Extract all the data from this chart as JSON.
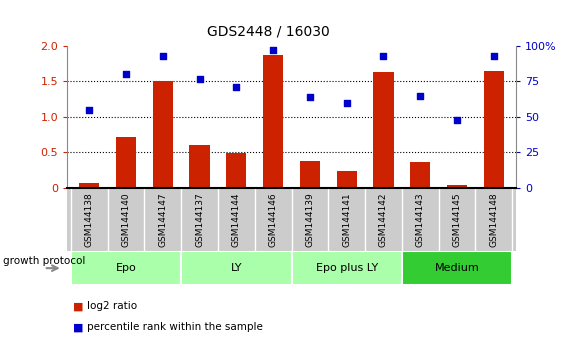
{
  "title": "GDS2448 / 16030",
  "categories": [
    "GSM144138",
    "GSM144140",
    "GSM144147",
    "GSM144137",
    "GSM144144",
    "GSM144146",
    "GSM144139",
    "GSM144141",
    "GSM144142",
    "GSM144143",
    "GSM144145",
    "GSM144148"
  ],
  "log2_ratio": [
    0.06,
    0.72,
    1.5,
    0.6,
    0.49,
    1.87,
    0.37,
    0.24,
    1.63,
    0.36,
    0.04,
    1.65
  ],
  "percentile_rank": [
    55,
    80,
    93,
    77,
    71,
    97,
    64,
    60,
    93,
    65,
    48,
    93
  ],
  "bar_color": "#cc2200",
  "dot_color": "#0000cc",
  "ylim_left": [
    0,
    2
  ],
  "ylim_right": [
    0,
    100
  ],
  "yticks_left": [
    0,
    0.5,
    1.0,
    1.5,
    2.0
  ],
  "yticks_right": [
    0,
    25,
    50,
    75,
    100
  ],
  "ytick_labels_right": [
    "0",
    "25",
    "50",
    "75",
    "100%"
  ],
  "dotted_lines": [
    0.5,
    1.0,
    1.5
  ],
  "groups": [
    {
      "label": "Epo",
      "start": 0,
      "end": 3,
      "color": "#aaffaa"
    },
    {
      "label": "LY",
      "start": 3,
      "end": 6,
      "color": "#aaffaa"
    },
    {
      "label": "Epo plus LY",
      "start": 6,
      "end": 9,
      "color": "#aaffaa"
    },
    {
      "label": "Medium",
      "start": 9,
      "end": 12,
      "color": "#33cc33"
    }
  ],
  "group_label": "growth protocol",
  "legend": [
    {
      "color": "#cc2200",
      "label": "log2 ratio"
    },
    {
      "color": "#0000cc",
      "label": "percentile rank within the sample"
    }
  ],
  "tick_color_left": "#cc2200",
  "tick_color_right": "#0000cc",
  "background_color": "#ffffff",
  "label_band_color": "#cccccc",
  "spine_color": "#888888"
}
